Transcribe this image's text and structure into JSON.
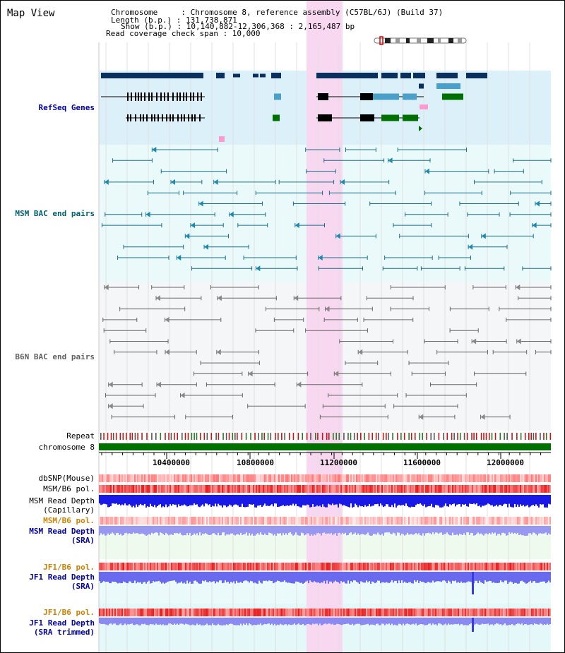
{
  "title": "Map View",
  "header": {
    "chromosome_label": "Chromosome     : Chromosome 8, reference assembly (C57BL/6J) (Build 37)",
    "length_label": "Length (b.p.) : 131,738,871",
    "show_label": "Show (b.p.) : 10,140,882-12,306,368 : 2,165,487 bp",
    "coverage_label": "Read coverage check span : 10,000"
  },
  "tracks": {
    "refseq": "RefSeq Genes",
    "msm_bac": "MSM BAC end pairs",
    "b6n_bac": "B6N BAC end pairs",
    "repeat": "Repeat",
    "chromosome": "chromosome 8",
    "dbsnp": "dbSNP(Mouse)",
    "msm_b6_pol": "MSM/B6 pol.",
    "msm_depth_cap_1": "MSM Read Depth",
    "msm_depth_cap_2": "(Capillary)",
    "msm_b6_pol_2": "MSM/B6 pol.",
    "msm_depth_sra_1": "MSM Read Depth",
    "msm_depth_sra_2": "(SRA)",
    "jf1_b6_pol": "JF1/B6 pol.",
    "jf1_depth_sra_1": "JF1 Read Depth",
    "jf1_depth_sra_2": "(SRA)",
    "jf1_b6_pol_2": "JF1/B6 pol.",
    "jf1_depth_trim_1": "JF1 Read Depth",
    "jf1_depth_trim_2": "(SRA trimmed)"
  },
  "axis": {
    "ticks": [
      "10400000",
      "10800000",
      "11200000",
      "11600000",
      "12000000"
    ]
  },
  "colors": {
    "refseq_bg": "#dcf0fa",
    "bac_bg": "#eafafa",
    "highlight": "#f8d8f0",
    "chromosome_bar": "#007000",
    "msm_label": "#006070",
    "refseq_label": "#0000a0",
    "pol_label": "#d08000"
  }
}
